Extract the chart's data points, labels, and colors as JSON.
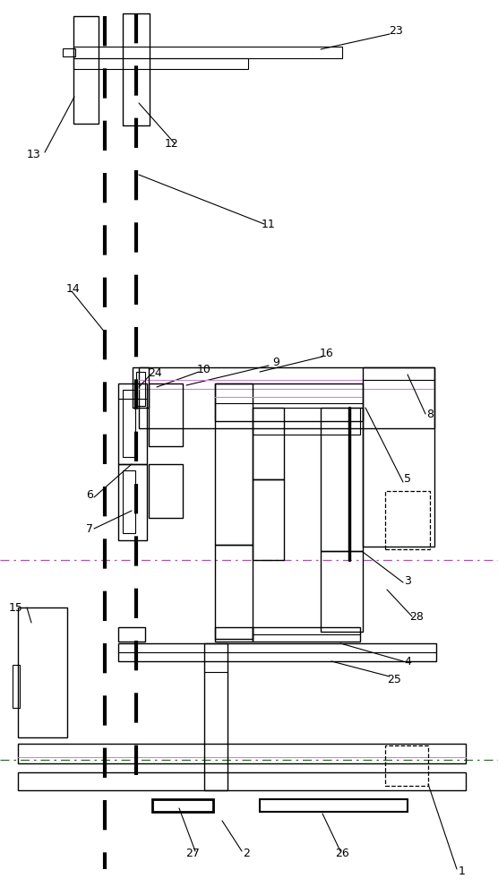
{
  "bg_color": "#ffffff",
  "lc": "#000000",
  "figsize": [
    5.56,
    10.0
  ],
  "dpi": 100
}
